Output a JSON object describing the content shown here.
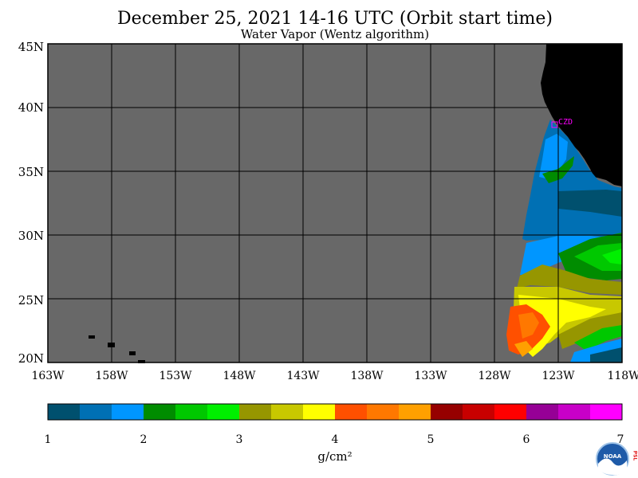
{
  "title": "December 25, 2021  14-16 UTC  (Orbit start time)",
  "subtitle": "Water Vapor (Wentz algorithm)",
  "lat_labels": [
    "45N",
    "40N",
    "35N",
    "30N",
    "25N",
    "20N"
  ],
  "lon_labels": [
    "163W",
    "158W",
    "153W",
    "148W",
    "143W",
    "138W",
    "133W",
    "128W",
    "123W",
    "118W"
  ],
  "station_label": "CZD",
  "colorbar": {
    "ticks": [
      "1",
      "2",
      "3",
      "4",
      "5",
      "6",
      "7"
    ],
    "unit": "g/cm²",
    "colors": [
      "#00506e",
      "#0070b4",
      "#0096ff",
      "#008c00",
      "#00c800",
      "#00f000",
      "#969600",
      "#c8c800",
      "#ffff00",
      "#ff5000",
      "#ff7800",
      "#ffa000",
      "#960000",
      "#c80000",
      "#ff0000",
      "#960096",
      "#c800c8",
      "#ff00ff"
    ]
  },
  "logo_text": {
    "noaa": "NOAA",
    "psl": "PSL"
  },
  "colors": {
    "no_data": "#686868",
    "land": "#000000",
    "grid": "#000000",
    "station": "#ff00ff"
  }
}
